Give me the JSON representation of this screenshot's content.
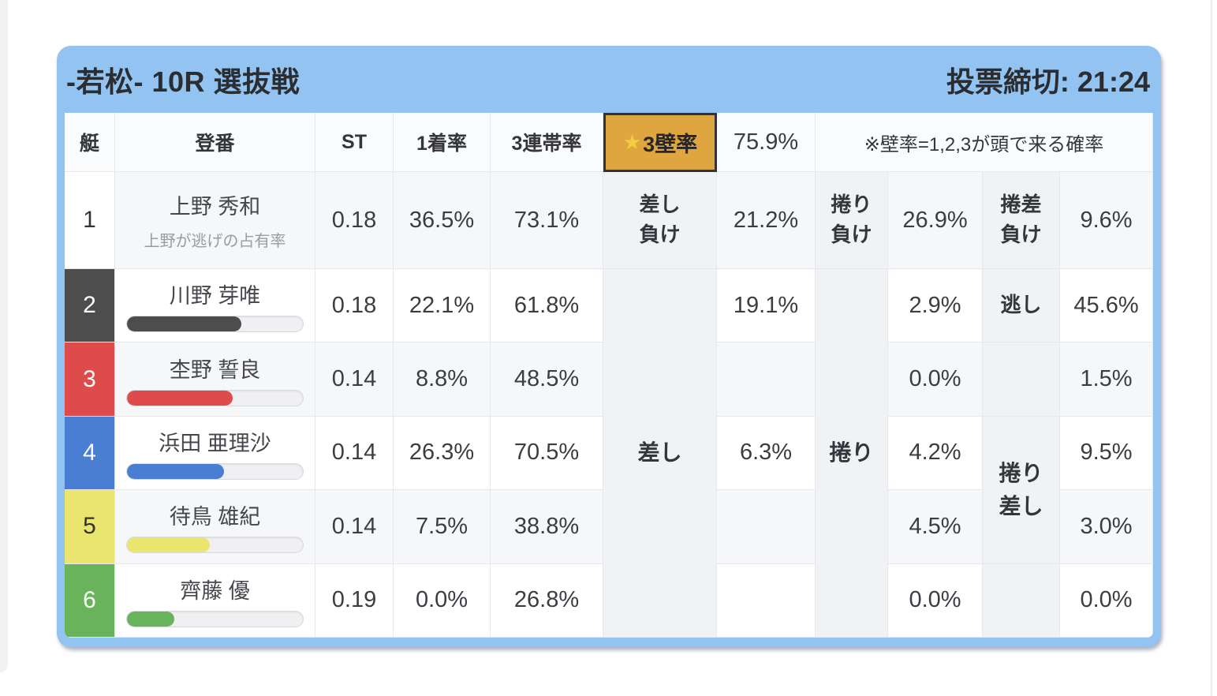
{
  "title_bar": {
    "title": "-若松- 10R 選抜戦",
    "deadline": "投票締切: 21:24"
  },
  "colors": {
    "card_blue": "#92c3f1",
    "wall_orange": "#dfa640",
    "star_yellow": "#f2ce3e"
  },
  "table_head": {
    "boat": "艇",
    "racer": "登番",
    "st": "ST",
    "win1": "1着率",
    "top3": "3連帯率",
    "wall_star": "★",
    "wall_label": "3壁率",
    "wall_value": "75.9%",
    "wall_note": "※壁率=1,2,3が頭で来る確率"
  },
  "rows": [
    {
      "num": "1",
      "name": "上野 秀和",
      "subtitle": "上野が逃げの占有率",
      "st": "0.18",
      "win1": "36.5%",
      "top3": "73.1%",
      "color": "#ffffff",
      "num_color": "#333333"
    },
    {
      "num": "2",
      "name": "川野 芽唯",
      "st": "0.18",
      "win1": "22.1%",
      "top3": "61.8%",
      "color": "#4d4d4d",
      "num_color": "#ffffff",
      "bar": "65%"
    },
    {
      "num": "3",
      "name": "杢野 誓良",
      "st": "0.14",
      "win1": "8.8%",
      "top3": "48.5%",
      "color": "#dd4b4b",
      "num_color": "#ffffff",
      "bar": "60%"
    },
    {
      "num": "4",
      "name": "浜田 亜理沙",
      "st": "0.14",
      "win1": "26.3%",
      "top3": "70.5%",
      "color": "#4a7ed2",
      "num_color": "#ffffff",
      "bar": "55%"
    },
    {
      "num": "5",
      "name": "待鳥 雄紀",
      "st": "0.14",
      "win1": "7.5%",
      "top3": "38.8%",
      "color": "#e9e56e",
      "num_color": "#333333",
      "bar": "47%"
    },
    {
      "num": "6",
      "name": "齊藤 優",
      "st": "0.19",
      "win1": "0.0%",
      "top3": "26.8%",
      "color": "#69b35a",
      "num_color": "#ffffff",
      "bar": "27%"
    }
  ],
  "outcome": {
    "sashi": {
      "head_l1": "差し",
      "head_l2": "負け",
      "merged": "差し",
      "values": [
        "21.2%",
        "19.1%",
        "",
        "6.3%",
        "",
        ""
      ]
    },
    "makuri": {
      "head_l1": "捲り",
      "head_l2": "負け",
      "merged": "捲り",
      "values": [
        "26.9%",
        "2.9%",
        "0.0%",
        "4.2%",
        "4.5%",
        "0.0%"
      ]
    },
    "makurizashi": {
      "head_l1": "捲差",
      "head_l2": "負け",
      "r2": "逃し",
      "merged_l1": "捲り",
      "merged_l2": "差し",
      "values": [
        "9.6%",
        "45.6%",
        "1.5%",
        "9.5%",
        "3.0%",
        "0.0%"
      ]
    }
  }
}
